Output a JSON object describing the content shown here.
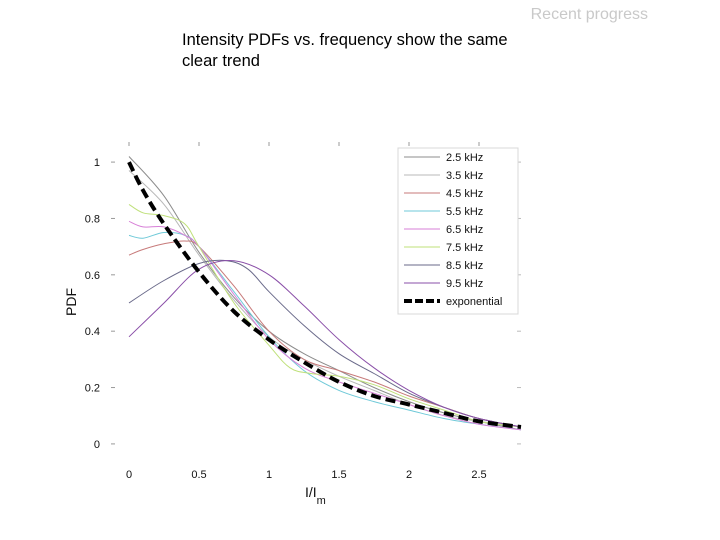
{
  "header": {
    "section": "Recent progress"
  },
  "slide": {
    "title": "Intensity PDFs vs. frequency show the same clear trend"
  },
  "chart_data": {
    "type": "line",
    "title": "",
    "xlabel": "I/I",
    "xlabel_sub": "m",
    "ylabel": "PDF",
    "xlim": [
      -0.2,
      2.8
    ],
    "ylim": [
      -0.05,
      1.05
    ],
    "xticks": [
      0,
      0.5,
      1,
      1.5,
      2,
      2.5
    ],
    "xtick_labels": [
      "0",
      "0.5",
      "1",
      "1.5",
      "2",
      "2.5"
    ],
    "yticks": [
      0,
      0.2,
      0.4,
      0.6,
      0.8,
      1
    ],
    "ytick_labels": [
      "0",
      "0.2",
      "0.4",
      "0.6",
      "0.8",
      "1"
    ],
    "grid": false,
    "legend_position": "top-right",
    "series": [
      {
        "name": "2.5 kHz",
        "color": "#8c8c8c",
        "dash": false,
        "x": [
          0,
          0.25,
          0.5,
          0.75,
          1,
          1.25,
          1.5,
          1.75,
          2,
          2.25,
          2.5,
          2.8
        ],
        "y": [
          1.02,
          0.88,
          0.68,
          0.52,
          0.4,
          0.32,
          0.26,
          0.2,
          0.15,
          0.11,
          0.08,
          0.05
        ]
      },
      {
        "name": "3.5 kHz",
        "color": "#b8b8b8",
        "dash": false,
        "x": [
          0,
          0.25,
          0.5,
          0.75,
          1,
          1.25,
          1.5,
          1.75,
          2,
          2.25,
          2.5,
          2.8
        ],
        "y": [
          0.97,
          0.85,
          0.67,
          0.51,
          0.38,
          0.3,
          0.24,
          0.19,
          0.14,
          0.1,
          0.08,
          0.06
        ]
      },
      {
        "name": "4.5 kHz",
        "color": "#c77a7a",
        "dash": false,
        "x": [
          0,
          0.1,
          0.25,
          0.4,
          0.5,
          0.75,
          1,
          1.25,
          1.5,
          1.75,
          2,
          2.25,
          2.5,
          2.8
        ],
        "y": [
          0.67,
          0.69,
          0.71,
          0.72,
          0.7,
          0.56,
          0.4,
          0.3,
          0.26,
          0.22,
          0.17,
          0.13,
          0.09,
          0.06
        ]
      },
      {
        "name": "5.5 kHz",
        "color": "#6fc9d8",
        "dash": false,
        "x": [
          0,
          0.1,
          0.25,
          0.4,
          0.5,
          0.75,
          1,
          1.25,
          1.5,
          1.75,
          2,
          2.25,
          2.5,
          2.8
        ],
        "y": [
          0.74,
          0.73,
          0.75,
          0.74,
          0.7,
          0.54,
          0.38,
          0.26,
          0.19,
          0.15,
          0.12,
          0.09,
          0.07,
          0.05
        ]
      },
      {
        "name": "6.5 kHz",
        "color": "#d77fd7",
        "dash": false,
        "x": [
          0,
          0.1,
          0.25,
          0.4,
          0.5,
          0.75,
          1,
          1.25,
          1.5,
          1.75,
          2,
          2.25,
          2.5,
          2.8
        ],
        "y": [
          0.79,
          0.77,
          0.77,
          0.74,
          0.7,
          0.53,
          0.37,
          0.27,
          0.22,
          0.18,
          0.14,
          0.1,
          0.07,
          0.05
        ]
      },
      {
        "name": "7.5 kHz",
        "color": "#bfe07a",
        "dash": false,
        "x": [
          0,
          0.1,
          0.25,
          0.4,
          0.5,
          0.75,
          1,
          1.15,
          1.3,
          1.5,
          1.75,
          2,
          2.25,
          2.5,
          2.8
        ],
        "y": [
          0.85,
          0.82,
          0.81,
          0.78,
          0.7,
          0.5,
          0.35,
          0.27,
          0.25,
          0.24,
          0.21,
          0.16,
          0.12,
          0.08,
          0.06
        ]
      },
      {
        "name": "8.5 kHz",
        "color": "#6a6a8a",
        "dash": false,
        "x": [
          0,
          0.25,
          0.5,
          0.7,
          0.85,
          1,
          1.25,
          1.5,
          1.75,
          2,
          2.25,
          2.5,
          2.8
        ],
        "y": [
          0.5,
          0.58,
          0.64,
          0.65,
          0.62,
          0.54,
          0.42,
          0.32,
          0.25,
          0.18,
          0.13,
          0.09,
          0.06
        ]
      },
      {
        "name": "9.5 kHz",
        "color": "#8a4fa8",
        "dash": false,
        "x": [
          0,
          0.25,
          0.5,
          0.75,
          1,
          1.25,
          1.5,
          1.75,
          2,
          2.25,
          2.5,
          2.8
        ],
        "y": [
          0.38,
          0.5,
          0.62,
          0.65,
          0.6,
          0.49,
          0.37,
          0.27,
          0.19,
          0.13,
          0.09,
          0.06
        ]
      },
      {
        "name": "exponential",
        "color": "#000000",
        "dash": true,
        "x": [
          0,
          0.1,
          0.25,
          0.5,
          0.75,
          1,
          1.25,
          1.5,
          1.75,
          2,
          2.25,
          2.5,
          2.8
        ],
        "y": [
          1.0,
          0.9,
          0.78,
          0.61,
          0.47,
          0.37,
          0.29,
          0.22,
          0.17,
          0.14,
          0.11,
          0.08,
          0.06
        ]
      }
    ]
  }
}
